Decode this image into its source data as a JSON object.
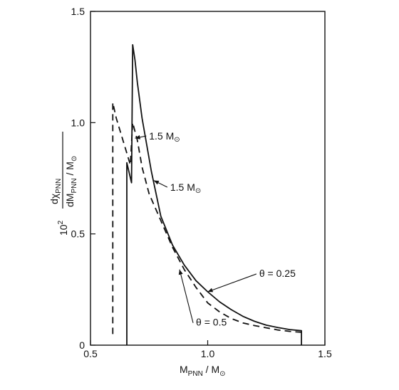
{
  "chart_data": {
    "type": "line",
    "xlabel": {
      "main": "M",
      "sub": "PNN",
      "tail": " / M",
      "sun": "⊙"
    },
    "ylabel": {
      "prefix": "10",
      "prefix_sup": "2",
      "numerator_main": "dχ",
      "numerator_sub": "PNN",
      "denominator_main": "dM",
      "denominator_sub": "PNN",
      "denominator_tail": " / M",
      "sun": "⊙"
    },
    "xlim": [
      0.5,
      1.5
    ],
    "ylim": [
      0,
      1.5
    ],
    "xticks": [
      0.5,
      1.0,
      1.5
    ],
    "yticks": [
      0,
      0.5,
      1.0,
      1.5
    ],
    "xtick_labels": [
      "0.5",
      "1.0",
      "1.5"
    ],
    "ytick_labels": [
      "0",
      "0.5",
      "1.0",
      "1.5"
    ],
    "grid": false,
    "series": [
      {
        "style": "solid",
        "x": [
          0.655,
          0.655,
          0.675,
          0.68,
          0.69,
          0.7,
          0.72,
          0.76,
          0.8,
          0.85,
          0.9,
          0.95,
          1.0,
          1.05,
          1.1,
          1.15,
          1.2,
          1.25,
          1.3,
          1.35,
          1.4,
          1.4
        ],
        "y": [
          0.0,
          0.82,
          0.73,
          1.35,
          1.28,
          1.18,
          1.02,
          0.78,
          0.58,
          0.45,
          0.36,
          0.29,
          0.24,
          0.195,
          0.16,
          0.13,
          0.107,
          0.09,
          0.079,
          0.07,
          0.065,
          0.0
        ]
      },
      {
        "style": "dashed",
        "x": [
          0.595,
          0.595,
          0.61,
          0.63,
          0.65,
          0.67,
          0.68,
          0.7,
          0.72,
          0.75,
          0.8,
          0.85,
          0.9,
          0.95,
          1.0,
          1.05,
          1.1,
          1.15,
          1.2,
          1.25,
          1.3,
          1.35,
          1.4
        ],
        "y": [
          0.05,
          1.09,
          1.02,
          0.95,
          0.88,
          0.81,
          1.0,
          0.92,
          0.8,
          0.68,
          0.56,
          0.44,
          0.34,
          0.26,
          0.19,
          0.15,
          0.12,
          0.1,
          0.088,
          0.078,
          0.068,
          0.062,
          0.058
        ]
      }
    ],
    "annotations": [
      {
        "id": "theta-025",
        "text": "θ = 0.25",
        "x": 1.22,
        "y": 0.32,
        "arrow_to": [
          1.0,
          0.24
        ]
      },
      {
        "id": "theta-05",
        "text": "θ = 0.5",
        "x": 0.95,
        "y": 0.1,
        "arrow_to": [
          0.88,
          0.34
        ]
      },
      {
        "id": "mass-15-upper",
        "text": "1.5 M",
        "sun": "⊙",
        "x": 0.75,
        "y": 0.94,
        "arrow_to": [
          0.69,
          0.93
        ]
      },
      {
        "id": "mass-15-lower",
        "text": "1.5 M",
        "sun": "⊙",
        "x": 0.84,
        "y": 0.71,
        "arrow_to": [
          0.77,
          0.74
        ]
      }
    ]
  }
}
